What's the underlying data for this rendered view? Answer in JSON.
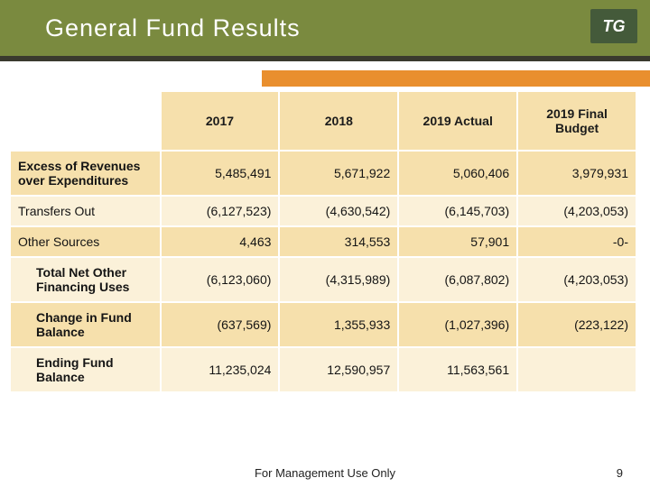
{
  "title": "General Fund Results",
  "logo_text": "TG",
  "footer": "For Management Use Only",
  "page_number": "9",
  "colors": {
    "header_band": "#7a8a3f",
    "rule_dark": "#3a3a2e",
    "rule_orange": "#e98f2e",
    "row_light": "#fbf1d9",
    "row_alt": "#f6e0ac",
    "text": "#141414",
    "border": "#ffffff"
  },
  "table": {
    "columns": [
      "2017",
      "2018",
      "2019 Actual",
      "2019 Final Budget"
    ],
    "rows": [
      {
        "label": "Excess of Revenues over Expenditures",
        "bold": true,
        "indent": false,
        "values": [
          "5,485,491",
          "5,671,922",
          "5,060,406",
          "3,979,931"
        ]
      },
      {
        "label": "Transfers Out",
        "bold": false,
        "indent": false,
        "values": [
          "(6,127,523)",
          "(4,630,542)",
          "(6,145,703)",
          "(4,203,053)"
        ]
      },
      {
        "label": "Other Sources",
        "bold": false,
        "indent": false,
        "values": [
          "4,463",
          "314,553",
          "57,901",
          "-0-"
        ]
      },
      {
        "label": "Total Net Other Financing Uses",
        "bold": true,
        "indent": true,
        "values": [
          "(6,123,060)",
          "(4,315,989)",
          "(6,087,802)",
          "(4,203,053)"
        ]
      },
      {
        "label": "Change in Fund Balance",
        "bold": true,
        "indent": true,
        "values": [
          "(637,569)",
          "1,355,933",
          "(1,027,396)",
          "(223,122)"
        ]
      },
      {
        "label": "Ending Fund Balance",
        "bold": true,
        "indent": true,
        "values": [
          "11,235,024",
          "12,590,957",
          "11,563,561",
          ""
        ]
      }
    ]
  }
}
